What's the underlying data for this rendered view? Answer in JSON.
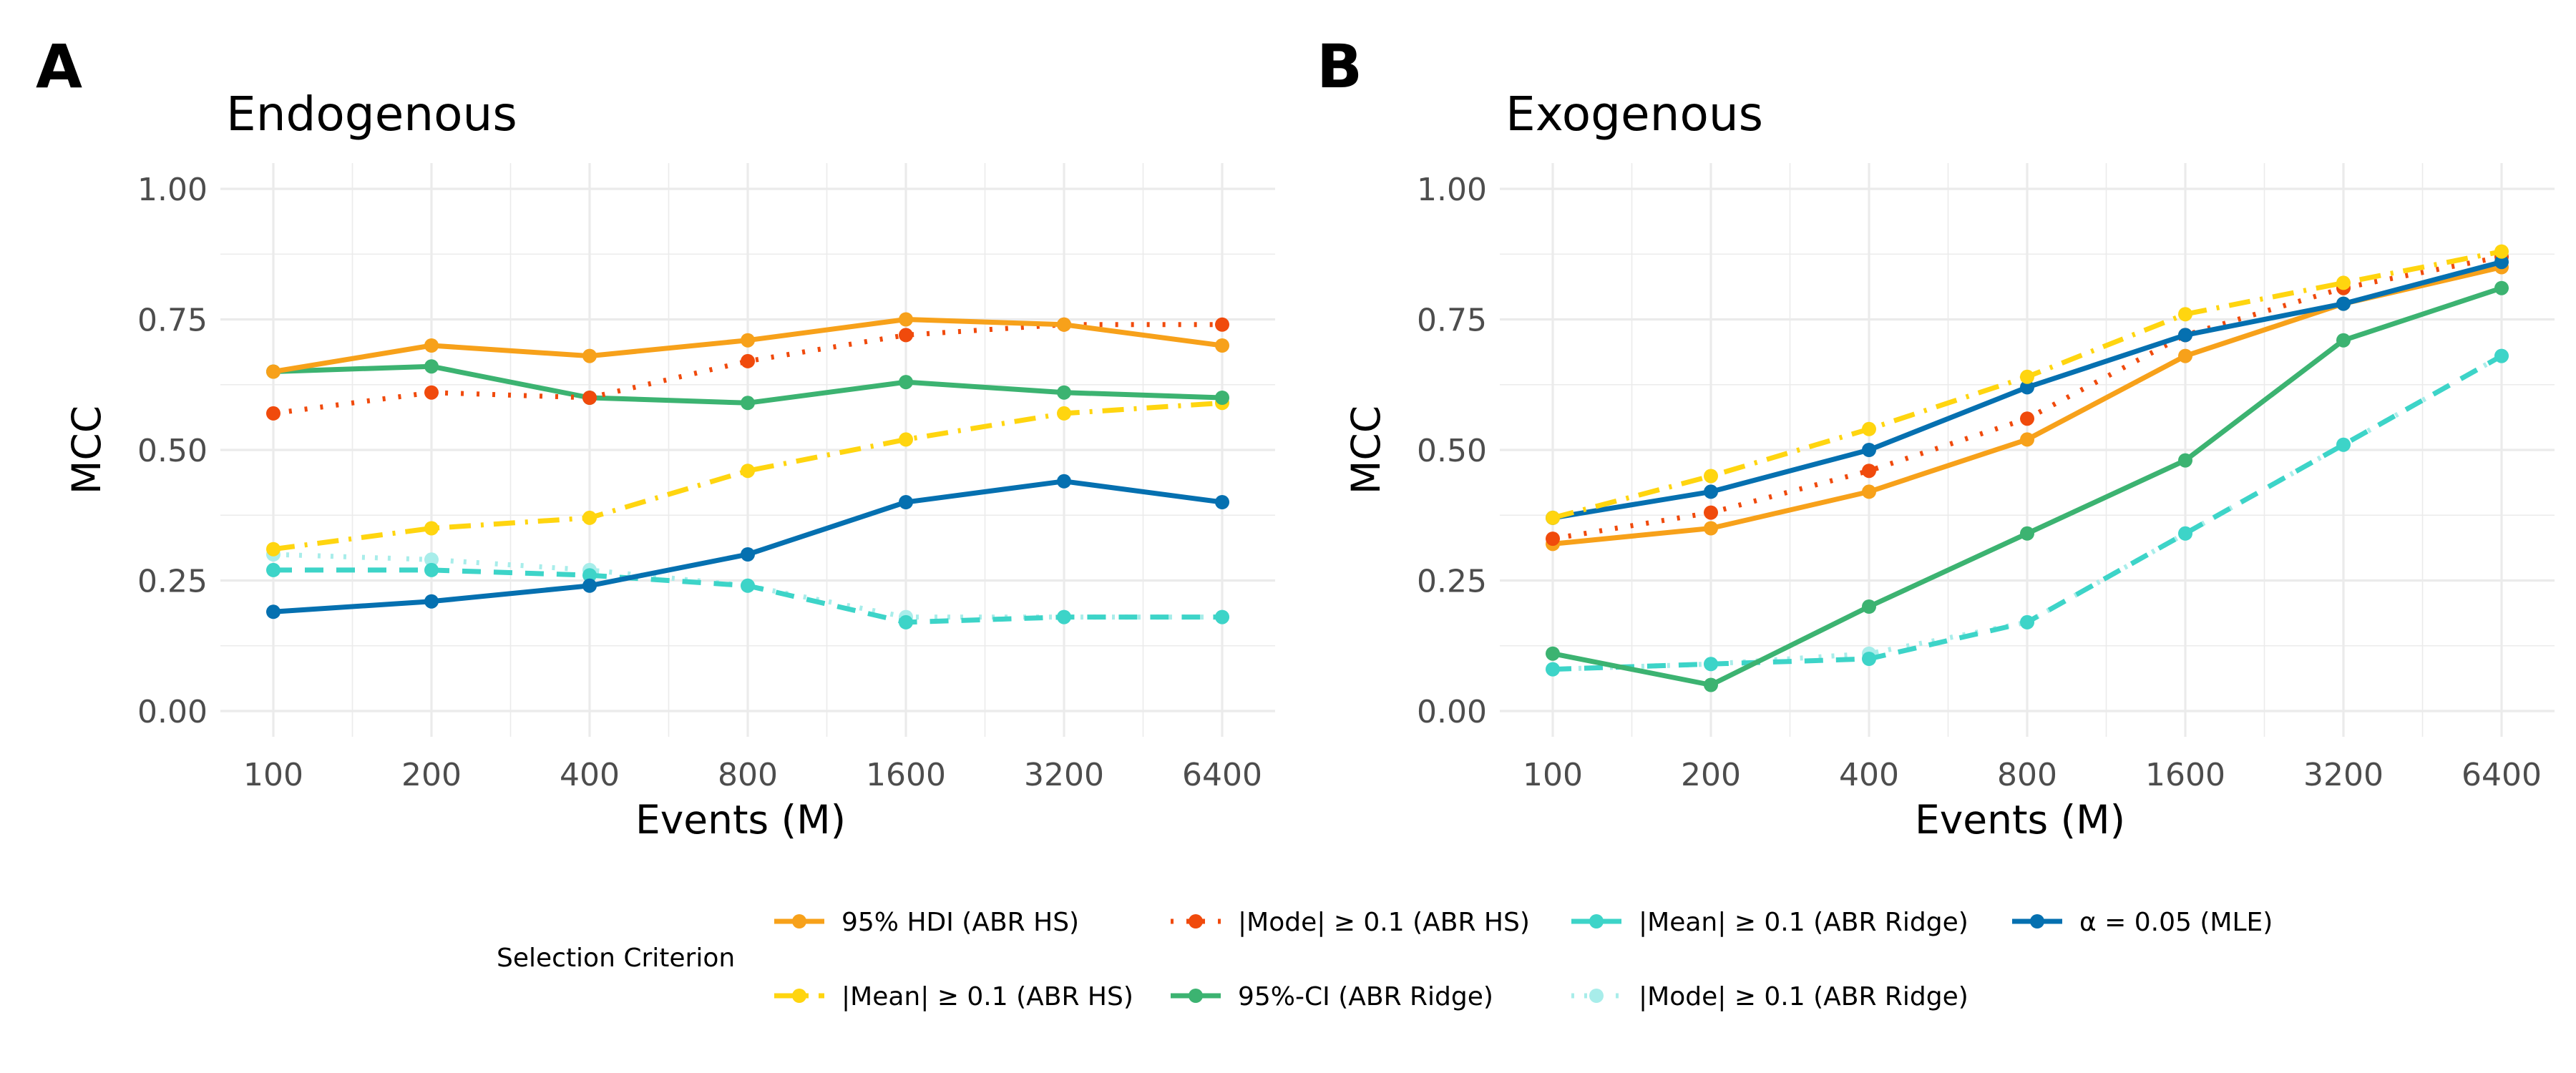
{
  "colors": {
    "hdi_hs": "#F7A11A",
    "mode_hs": "#F04A0C",
    "mean_ridge": "#3DD4C8",
    "mle": "#0570B0",
    "mean_hs": "#FFD50F",
    "ci_ridge": "#3CB371",
    "mode_ridge": "#A8EDEA"
  },
  "legend": {
    "title": "Selection Criterion",
    "rows": [
      [
        {
          "key": "hdi_hs",
          "label": "95% HDI (ABR HS)"
        },
        {
          "key": "mode_hs",
          "label": "|Mode| ≥ 0.1 (ABR HS)"
        },
        {
          "key": "mean_ridge",
          "label": "|Mean| ≥ 0.1 (ABR Ridge)"
        },
        {
          "key": "mle",
          "label": "α = 0.05 (MLE)"
        }
      ],
      [
        {
          "key": "mean_hs",
          "label": "|Mean| ≥ 0.1 (ABR HS)"
        },
        {
          "key": "ci_ridge",
          "label": "95%-CI (ABR Ridge)"
        },
        {
          "key": "mode_ridge",
          "label": "|Mode| ≥ 0.1 (ABR Ridge)"
        }
      ]
    ]
  },
  "chart_data": [
    {
      "type": "line",
      "tag": "A",
      "title": "Endogenous",
      "xlabel": "Events (M)",
      "ylabel": "MCC",
      "x_scale": "log2",
      "x": [
        100,
        200,
        400,
        800,
        1600,
        3200,
        6400
      ],
      "x_tick_labels": [
        "100",
        "200",
        "400",
        "800",
        "1600",
        "3200",
        "6400"
      ],
      "ylim": [
        0,
        1
      ],
      "y_ticks": [
        0,
        0.25,
        0.5,
        0.75,
        1
      ],
      "y_tick_labels": [
        "0.00",
        "0.25",
        "0.50",
        "0.75",
        "1.00"
      ],
      "grid": true,
      "series": [
        {
          "key": "mode_ridge",
          "name": "|Mode| ≥ 0.1 (ABR Ridge)",
          "values": [
            0.3,
            0.29,
            0.27,
            0.24,
            0.18,
            0.18,
            0.18
          ]
        },
        {
          "key": "mean_ridge",
          "name": "|Mean| ≥ 0.1 (ABR Ridge)",
          "values": [
            0.27,
            0.27,
            0.26,
            0.24,
            0.17,
            0.18,
            0.18
          ]
        },
        {
          "key": "mean_hs",
          "name": "|Mean| ≥ 0.1 (ABR HS)",
          "values": [
            0.31,
            0.35,
            0.37,
            0.46,
            0.52,
            0.57,
            0.59
          ]
        },
        {
          "key": "ci_ridge",
          "name": "95%-CI (ABR Ridge)",
          "values": [
            0.65,
            0.66,
            0.6,
            0.59,
            0.63,
            0.61,
            0.6
          ]
        },
        {
          "key": "mode_hs",
          "name": "|Mode| ≥ 0.1 (ABR HS)",
          "values": [
            0.57,
            0.61,
            0.6,
            0.67,
            0.72,
            0.74,
            0.74
          ]
        },
        {
          "key": "hdi_hs",
          "name": "95% HDI (ABR HS)",
          "values": [
            0.65,
            0.7,
            0.68,
            0.71,
            0.75,
            0.74,
            0.7
          ]
        },
        {
          "key": "mle",
          "name": "α = 0.05 (MLE)",
          "values": [
            0.19,
            0.21,
            0.24,
            0.3,
            0.4,
            0.44,
            0.4
          ]
        }
      ]
    },
    {
      "type": "line",
      "tag": "B",
      "title": "Exogenous",
      "xlabel": "Events (M)",
      "ylabel": "MCC",
      "x_scale": "log2",
      "x": [
        100,
        200,
        400,
        800,
        1600,
        3200,
        6400
      ],
      "x_tick_labels": [
        "100",
        "200",
        "400",
        "800",
        "1600",
        "3200",
        "6400"
      ],
      "ylim": [
        0,
        1
      ],
      "y_ticks": [
        0,
        0.25,
        0.5,
        0.75,
        1
      ],
      "y_tick_labels": [
        "0.00",
        "0.25",
        "0.50",
        "0.75",
        "1.00"
      ],
      "grid": true,
      "series": [
        {
          "key": "mode_ridge",
          "name": "|Mode| ≥ 0.1 (ABR Ridge)",
          "values": [
            0.08,
            0.09,
            0.11,
            0.17,
            0.34,
            0.51,
            0.68
          ]
        },
        {
          "key": "mean_ridge",
          "name": "|Mean| ≥ 0.1 (ABR Ridge)",
          "values": [
            0.08,
            0.09,
            0.1,
            0.17,
            0.34,
            0.51,
            0.68
          ]
        },
        {
          "key": "ci_ridge",
          "name": "95%-CI (ABR Ridge)",
          "values": [
            0.11,
            0.05,
            0.2,
            0.34,
            0.48,
            0.71,
            0.81
          ]
        },
        {
          "key": "hdi_hs",
          "name": "95% HDI (ABR HS)",
          "values": [
            0.32,
            0.35,
            0.42,
            0.52,
            0.68,
            0.78,
            0.85
          ]
        },
        {
          "key": "mode_hs",
          "name": "|Mode| ≥ 0.1 (ABR HS)",
          "values": [
            0.33,
            0.38,
            0.46,
            0.56,
            0.72,
            0.81,
            0.87
          ]
        },
        {
          "key": "mle",
          "name": "α = 0.05 (MLE)",
          "values": [
            0.37,
            0.42,
            0.5,
            0.62,
            0.72,
            0.78,
            0.86
          ]
        },
        {
          "key": "mean_hs",
          "name": "|Mean| ≥ 0.1 (ABR HS)",
          "values": [
            0.37,
            0.45,
            0.54,
            0.64,
            0.76,
            0.82,
            0.88
          ]
        }
      ]
    }
  ]
}
